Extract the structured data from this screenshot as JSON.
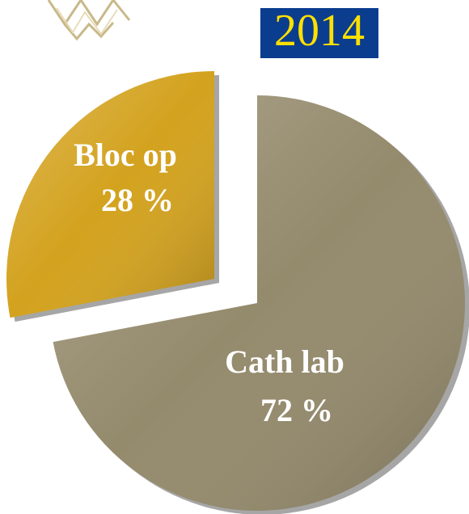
{
  "chart_data": {
    "type": "pie",
    "title": "2014",
    "categories": [
      "Cath lab",
      "Bloc op"
    ],
    "values": [
      72,
      28
    ],
    "value_labels": [
      "72 %",
      "28 %"
    ],
    "colors": [
      "#948a6c",
      "#d3a21e"
    ]
  }
}
